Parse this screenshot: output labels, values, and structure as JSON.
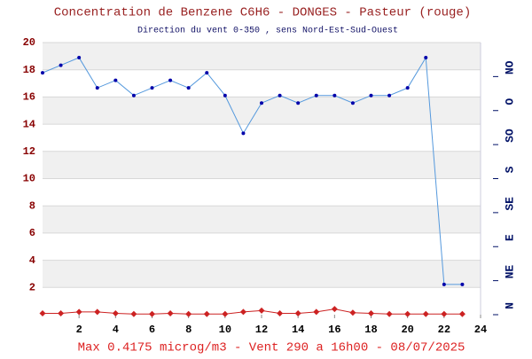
{
  "chart_data": {
    "type": "line",
    "title": "Concentration de Benzene C6H6  -   DONGES - Pasteur (rouge)",
    "subtitle": "Direction du vent 0-350 , sens Nord-Est-Sud-Ouest",
    "annotation": "Max 0.4175 microg/m3 - Vent 290  a 16h00 - 08/07/2025",
    "x": [
      0,
      1,
      2,
      3,
      4,
      5,
      6,
      7,
      8,
      9,
      10,
      11,
      12,
      13,
      14,
      15,
      16,
      17,
      18,
      19,
      20,
      21,
      22,
      23
    ],
    "xlim": [
      0,
      24
    ],
    "xticks": [
      2,
      4,
      6,
      8,
      10,
      12,
      14,
      16,
      18,
      20,
      22,
      24
    ],
    "ylim": [
      0,
      20
    ],
    "yticks": [
      2,
      4,
      6,
      8,
      10,
      12,
      14,
      16,
      18,
      20
    ],
    "y2lim": [
      0,
      360
    ],
    "y2ticks": [
      {
        "value": 0,
        "label": "N"
      },
      {
        "value": 45,
        "label": "NE"
      },
      {
        "value": 90,
        "label": "E"
      },
      {
        "value": 135,
        "label": "SE"
      },
      {
        "value": 180,
        "label": "S"
      },
      {
        "value": 225,
        "label": "SO"
      },
      {
        "value": 270,
        "label": "O"
      },
      {
        "value": 315,
        "label": "NO"
      }
    ],
    "grid": true,
    "series": [
      {
        "name": "Benzene",
        "color": "#cc2222",
        "axis": "y",
        "marker": "diamond",
        "values": [
          0.1,
          0.1,
          0.2,
          0.2,
          0.1,
          0.05,
          0.05,
          0.1,
          0.05,
          0.05,
          0.05,
          0.2,
          0.3,
          0.1,
          0.1,
          0.2,
          0.4175,
          0.15,
          0.1,
          0.05,
          0.05,
          0.05,
          0.05,
          0.05
        ]
      },
      {
        "name": "Vent",
        "color": "#5599dd",
        "axis": "y2",
        "marker": "dot",
        "values": [
          320,
          330,
          340,
          300,
          310,
          290,
          300,
          310,
          300,
          320,
          290,
          240,
          280,
          290,
          280,
          290,
          290,
          280,
          290,
          290,
          300,
          340,
          40,
          40
        ]
      }
    ]
  }
}
